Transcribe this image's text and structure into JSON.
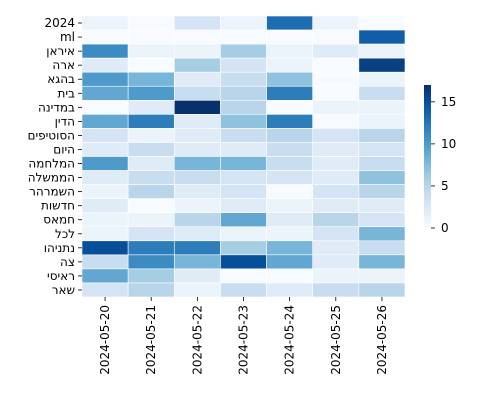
{
  "chart_data": {
    "type": "heatmap",
    "title": "",
    "xlabel": "",
    "ylabel": "",
    "x_categories": [
      "2024-05-20",
      "2024-05-21",
      "2024-05-22",
      "2024-05-23",
      "2024-05-24",
      "2024-05-25",
      "2024-05-26"
    ],
    "y_categories": [
      "2024",
      "ml",
      "איראן",
      "ארה",
      "בהגא",
      "בית",
      "במדינה",
      "הדין",
      "הסוטיפים",
      "היום",
      "המלחמה",
      "הממשלה",
      "השמרהר",
      "חדשות",
      "חמאס",
      "לכל",
      "נתניהו",
      "צה",
      "ראיסי",
      "שאר"
    ],
    "values": [
      [
        1,
        0,
        3,
        1,
        13,
        1,
        0
      ],
      [
        0,
        0,
        0,
        0,
        0,
        0,
        14
      ],
      [
        11,
        1,
        1,
        6,
        1,
        2,
        1
      ],
      [
        2,
        0,
        6,
        3,
        1,
        0,
        16
      ],
      [
        10,
        8,
        2,
        4,
        7,
        0,
        1
      ],
      [
        9,
        10,
        4,
        5,
        12,
        0,
        4
      ],
      [
        0,
        2,
        17,
        5,
        0,
        1,
        1
      ],
      [
        9,
        12,
        2,
        7,
        12,
        0,
        1
      ],
      [
        3,
        1,
        2,
        4,
        5,
        3,
        5
      ],
      [
        2,
        4,
        2,
        2,
        4,
        2,
        3
      ],
      [
        10,
        2,
        8,
        8,
        4,
        2,
        4
      ],
      [
        2,
        4,
        4,
        3,
        3,
        2,
        7
      ],
      [
        1,
        5,
        2,
        3,
        0,
        3,
        5
      ],
      [
        2,
        0,
        1,
        2,
        1,
        2,
        2
      ],
      [
        1,
        1,
        5,
        9,
        2,
        5,
        3
      ],
      [
        1,
        3,
        2,
        1,
        1,
        3,
        8
      ],
      [
        15,
        12,
        12,
        6,
        8,
        2,
        4
      ],
      [
        4,
        11,
        8,
        15,
        9,
        2,
        8
      ],
      [
        9,
        6,
        2,
        0,
        0,
        1,
        1
      ],
      [
        3,
        5,
        1,
        4,
        2,
        4,
        5
      ]
    ],
    "colormap": "Blues",
    "vmin": 0,
    "vmax": 17,
    "colorbar_ticks": [
      0,
      5,
      10,
      15
    ],
    "grid": true,
    "cell_border_color": "#ffffff"
  }
}
